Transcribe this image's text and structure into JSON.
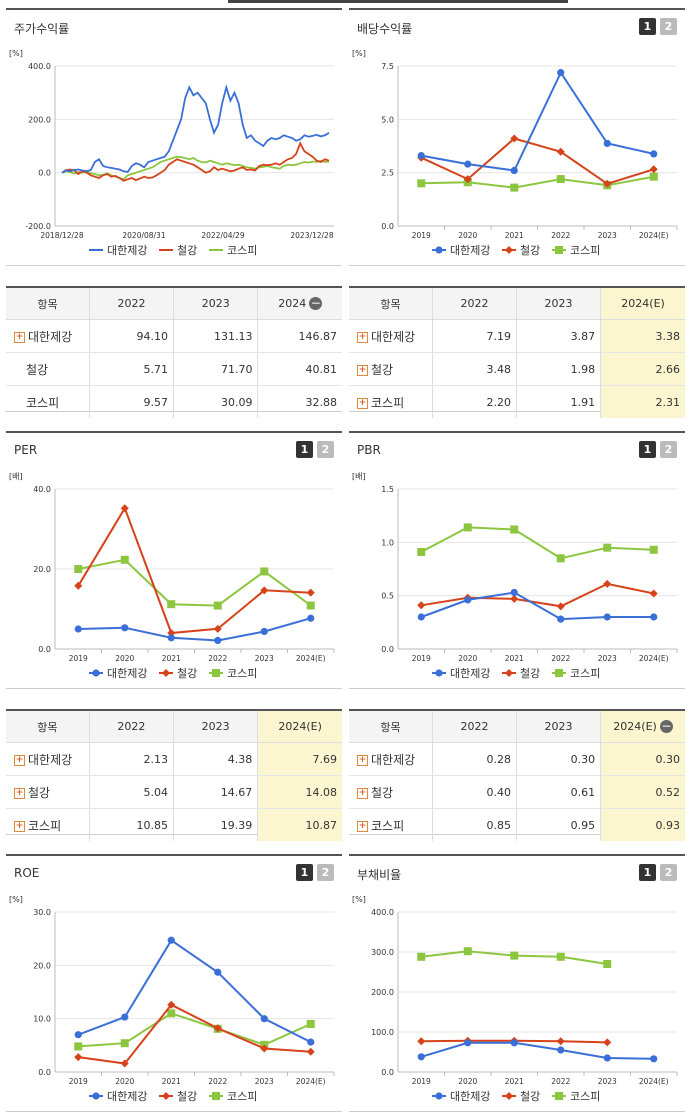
{
  "colors": {
    "company": "#3a6fd8",
    "industry": "#d6421a",
    "kospi": "#8cc63f"
  },
  "legend": {
    "company": "대한제강",
    "industry": "철강",
    "kospi": "코스피"
  },
  "stock_panel": {
    "title": "주가수익률",
    "chart_data": {
      "type": "line",
      "unit": "[%]",
      "ylim": [
        -200,
        400
      ],
      "yticks": [
        "400.0",
        "200.0",
        "0.0",
        "-200.0"
      ],
      "xticks": [
        "2018/12/28",
        "2020/08/31",
        "2022/04/29",
        "2023/12/28"
      ],
      "series": [
        {
          "name": "대한제강",
          "values": [
            0,
            8,
            5,
            10,
            12,
            8,
            6,
            10,
            40,
            50,
            25,
            20,
            18,
            15,
            12,
            5,
            3,
            25,
            35,
            30,
            20,
            40,
            45,
            50,
            55,
            60,
            80,
            120,
            160,
            200,
            280,
            320,
            290,
            300,
            280,
            260,
            200,
            150,
            180,
            260,
            320,
            270,
            300,
            260,
            180,
            130,
            140,
            120,
            110,
            100,
            120,
            130,
            125,
            130,
            140,
            135,
            130,
            120,
            125,
            140,
            135,
            138,
            142,
            136,
            140,
            150
          ]
        },
        {
          "name": "철강",
          "values": [
            0,
            10,
            12,
            8,
            -5,
            5,
            0,
            -10,
            -15,
            -20,
            -10,
            -5,
            -15,
            -12,
            -20,
            -30,
            -25,
            -20,
            -28,
            -22,
            -15,
            -20,
            -18,
            -10,
            0,
            10,
            30,
            40,
            50,
            45,
            40,
            35,
            30,
            20,
            10,
            0,
            5,
            20,
            10,
            15,
            10,
            5,
            8,
            15,
            20,
            10,
            12,
            8,
            25,
            30,
            28,
            30,
            35,
            30,
            40,
            50,
            55,
            70,
            110,
            80,
            70,
            60,
            45,
            40,
            50,
            45
          ]
        },
        {
          "name": "코스피",
          "values": [
            0,
            5,
            2,
            -3,
            2,
            0,
            5,
            -2,
            -5,
            -10,
            -8,
            -3,
            -10,
            -15,
            -20,
            -25,
            -10,
            -5,
            0,
            5,
            10,
            15,
            20,
            30,
            40,
            45,
            50,
            55,
            60,
            58,
            55,
            50,
            55,
            45,
            40,
            38,
            45,
            40,
            35,
            30,
            35,
            32,
            28,
            30,
            25,
            20,
            18,
            15,
            20,
            22,
            25,
            20,
            18,
            15,
            25,
            30,
            28,
            30,
            35,
            40,
            38,
            42,
            40,
            45,
            40,
            42
          ]
        }
      ]
    }
  },
  "dividend_panel": {
    "title": "배당수익률",
    "btn1": "1",
    "btn2": "2",
    "chart_data": {
      "type": "line",
      "unit": "[%]",
      "ylim": [
        0,
        7.5
      ],
      "yticks": [
        "7.5",
        "5.0",
        "2.5",
        "0.0"
      ],
      "x": [
        "2019",
        "2020",
        "2021",
        "2022",
        "2023",
        "2024(E)"
      ],
      "series": [
        {
          "name": "대한제강",
          "values": [
            3.3,
            2.9,
            2.6,
            7.19,
            3.87,
            3.38
          ]
        },
        {
          "name": "철강",
          "values": [
            3.2,
            2.2,
            4.1,
            3.48,
            1.98,
            2.66
          ]
        },
        {
          "name": "코스피",
          "values": [
            2.0,
            2.05,
            1.8,
            2.2,
            1.91,
            2.31
          ]
        }
      ]
    }
  },
  "per_panel": {
    "title": "PER",
    "btn1": "1",
    "btn2": "2",
    "chart_data": {
      "type": "line",
      "unit": "[배]",
      "ylim": [
        0,
        40
      ],
      "yticks": [
        "40.0",
        "20.0",
        "0.0"
      ],
      "x": [
        "2019",
        "2020",
        "2021",
        "2022",
        "2023",
        "2024(E)"
      ],
      "series": [
        {
          "name": "대한제강",
          "values": [
            5.0,
            5.3,
            2.8,
            2.13,
            4.38,
            7.69
          ]
        },
        {
          "name": "철강",
          "values": [
            15.8,
            35.2,
            4.0,
            5.04,
            14.67,
            14.08
          ]
        },
        {
          "name": "코스피",
          "values": [
            20.0,
            22.3,
            11.2,
            10.85,
            19.39,
            10.87
          ]
        }
      ]
    }
  },
  "pbr_panel": {
    "title": "PBR",
    "btn1": "1",
    "btn2": "2",
    "chart_data": {
      "type": "line",
      "unit": "[배]",
      "ylim": [
        0,
        1.5
      ],
      "yticks": [
        "1.5",
        "1.0",
        "0.5",
        "0.0"
      ],
      "x": [
        "2019",
        "2020",
        "2021",
        "2022",
        "2023",
        "2024(E)"
      ],
      "series": [
        {
          "name": "대한제강",
          "values": [
            0.3,
            0.46,
            0.53,
            0.28,
            0.3,
            0.3
          ]
        },
        {
          "name": "철강",
          "values": [
            0.41,
            0.48,
            0.47,
            0.4,
            0.61,
            0.52
          ]
        },
        {
          "name": "코스피",
          "values": [
            0.91,
            1.14,
            1.12,
            0.85,
            0.95,
            0.93
          ]
        }
      ]
    }
  },
  "roe_panel": {
    "title": "ROE",
    "btn1": "1",
    "btn2": "2",
    "chart_data": {
      "type": "line",
      "unit": "[%]",
      "ylim": [
        0,
        30
      ],
      "yticks": [
        "30.0",
        "20.0",
        "10.0",
        "0.0"
      ],
      "x": [
        "2019",
        "2020",
        "2021",
        "2022",
        "2023",
        "2024(E)"
      ],
      "series": [
        {
          "name": "대한제강",
          "values": [
            7.0,
            10.3,
            24.7,
            18.7,
            10.0,
            5.6
          ]
        },
        {
          "name": "철강",
          "values": [
            2.8,
            1.6,
            12.6,
            8.2,
            4.4,
            3.8
          ]
        },
        {
          "name": "코스피",
          "values": [
            4.8,
            5.4,
            11.0,
            8.1,
            5.1,
            9.0
          ]
        }
      ]
    }
  },
  "debt_panel": {
    "title": "부채비율",
    "btn1": "1",
    "btn2": "2",
    "chart_data": {
      "type": "line",
      "unit": "[%]",
      "ylim": [
        0,
        400
      ],
      "yticks": [
        "400.0",
        "300.0",
        "200.0",
        "100.0",
        "0.0"
      ],
      "x": [
        "2019",
        "2020",
        "2021",
        "2022",
        "2023",
        "2024(E)"
      ],
      "series": [
        {
          "name": "대한제강",
          "values": [
            38,
            73,
            73,
            55,
            35,
            33
          ]
        },
        {
          "name": "철강",
          "values": [
            77,
            78,
            78,
            77,
            74,
            null
          ]
        },
        {
          "name": "코스피",
          "values": [
            288,
            302,
            291,
            288,
            270,
            null
          ]
        }
      ]
    }
  },
  "tables": {
    "stock": {
      "head": [
        "항목",
        "2022",
        "2023",
        "2024"
      ],
      "rows": [
        [
          "대한제강",
          "94.10",
          "131.13",
          "146.87"
        ],
        [
          "철강",
          "5.71",
          "71.70",
          "40.81"
        ],
        [
          "코스피",
          "9.57",
          "30.09",
          "32.88"
        ]
      ]
    },
    "dividend": {
      "head": [
        "항목",
        "2022",
        "2023",
        "2024(E)"
      ],
      "rows": [
        [
          "대한제강",
          "7.19",
          "3.87",
          "3.38"
        ],
        [
          "철강",
          "3.48",
          "1.98",
          "2.66"
        ],
        [
          "코스피",
          "2.20",
          "1.91",
          "2.31"
        ]
      ]
    },
    "per": {
      "head": [
        "항목",
        "2022",
        "2023",
        "2024(E)"
      ],
      "rows": [
        [
          "대한제강",
          "2.13",
          "4.38",
          "7.69"
        ],
        [
          "철강",
          "5.04",
          "14.67",
          "14.08"
        ],
        [
          "코스피",
          "10.85",
          "19.39",
          "10.87"
        ]
      ]
    },
    "pbr": {
      "head": [
        "항목",
        "2022",
        "2023",
        "2024(E)"
      ],
      "rows": [
        [
          "대한제강",
          "0.28",
          "0.30",
          "0.30"
        ],
        [
          "철강",
          "0.40",
          "0.61",
          "0.52"
        ],
        [
          "코스피",
          "0.85",
          "0.95",
          "0.93"
        ]
      ]
    }
  }
}
